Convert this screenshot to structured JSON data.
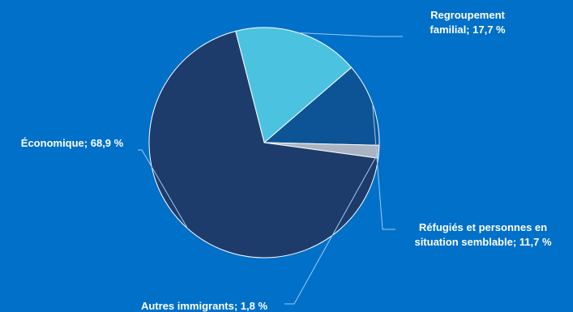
{
  "chart_data": {
    "type": "pie",
    "title": "",
    "start_angle_deg": -104.4,
    "direction": "clockwise",
    "slices": [
      {
        "label": "Regroupement familial; 17,7 %",
        "label_lines": [
          "Regroupement",
          "familial; 17,7 %"
        ],
        "category": "Regroupement familial",
        "value": 17.7,
        "color": "#4BC3E0"
      },
      {
        "label": "Réfugiés et personnes en situation semblable; 11,7 %",
        "label_lines": [
          "Réfugiés et personnes en",
          "situation semblable; 11,7 %"
        ],
        "category": "Réfugiés et personnes en situation semblable",
        "value": 11.7,
        "color": "#0D5496"
      },
      {
        "label": "Autres immigrants; 1,8 %",
        "label_lines": [
          "Autres immigrants; 1,8 %"
        ],
        "category": "Autres immigrants",
        "value": 1.8,
        "color": "#A9B3C1"
      },
      {
        "label": "Économique; 68,9 %",
        "label_lines": [
          "Économique; 68,9 %"
        ],
        "category": "Économique",
        "value": 68.9,
        "color": "#1E3C6B"
      }
    ],
    "label_color": "#FFFFFF",
    "leader_line_color": "#9CCBEE",
    "slice_border_color": "#FFFFFF"
  }
}
